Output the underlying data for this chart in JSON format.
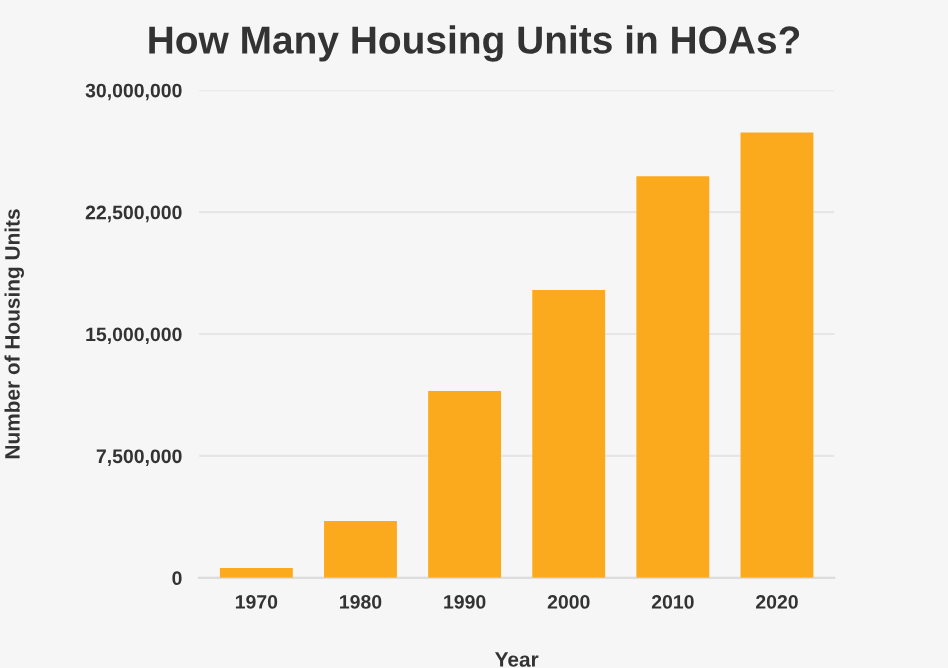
{
  "chart_data": {
    "type": "bar",
    "title": "How Many Housing Units in HOAs?",
    "xlabel": "Year",
    "ylabel": "Number of Housing Units",
    "categories": [
      "1970",
      "1980",
      "1990",
      "2000",
      "2010",
      "2020"
    ],
    "values": [
      600000,
      3500000,
      11500000,
      17700000,
      24700000,
      27400000
    ],
    "color": "#fbaa1e",
    "ylim": [
      0,
      30000000
    ],
    "yticks": [
      {
        "value": 0,
        "label": "0"
      },
      {
        "value": 7500000,
        "label": "7,500,000"
      },
      {
        "value": 15000000,
        "label": "15,000,000"
      },
      {
        "value": 22500000,
        "label": "22,500,000"
      },
      {
        "value": 30000000,
        "label": "30,000,000"
      }
    ],
    "grid": "y"
  }
}
